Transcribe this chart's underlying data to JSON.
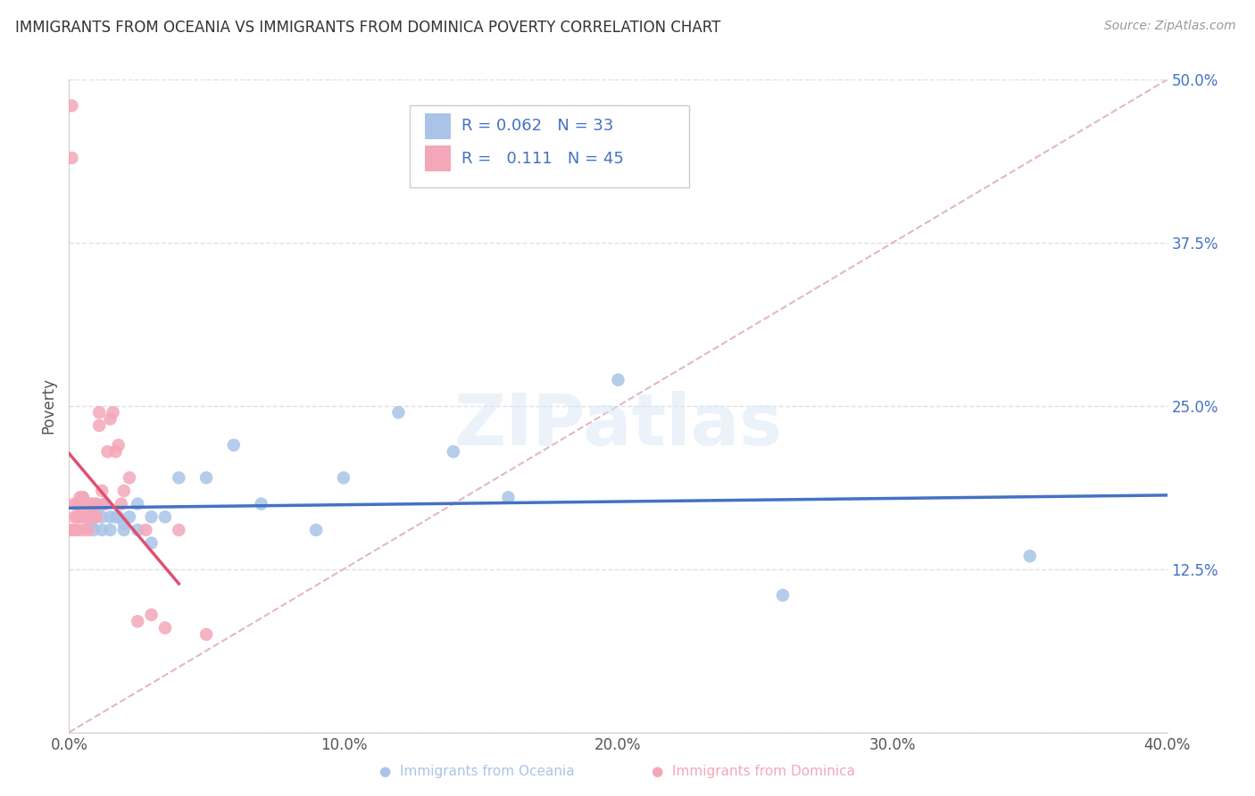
{
  "title": "IMMIGRANTS FROM OCEANIA VS IMMIGRANTS FROM DOMINICA POVERTY CORRELATION CHART",
  "source": "Source: ZipAtlas.com",
  "ylabel": "Poverty",
  "watermark": "ZIPatlas",
  "legend_r_oceania": "0.062",
  "legend_n_oceania": "33",
  "legend_r_dominica": "0.111",
  "legend_n_dominica": "45",
  "xlim": [
    0.0,
    0.4
  ],
  "ylim": [
    0.0,
    0.5
  ],
  "yticks": [
    0.0,
    0.125,
    0.25,
    0.375,
    0.5
  ],
  "xticks": [
    0.0,
    0.1,
    0.2,
    0.3,
    0.4
  ],
  "background_color": "#ffffff",
  "grid_color": "#e0e0e8",
  "title_color": "#333333",
  "oceania_color": "#aac4e8",
  "dominica_color": "#f4a7b9",
  "oceania_line_color": "#4472c4",
  "dominica_line_color": "#e05070",
  "ref_line_color": "#e0b8c8",
  "oceania_scatter_x": [
    0.003,
    0.005,
    0.007,
    0.008,
    0.009,
    0.01,
    0.012,
    0.012,
    0.013,
    0.015,
    0.015,
    0.017,
    0.018,
    0.02,
    0.02,
    0.022,
    0.025,
    0.025,
    0.03,
    0.03,
    0.035,
    0.04,
    0.05,
    0.06,
    0.07,
    0.09,
    0.1,
    0.12,
    0.14,
    0.16,
    0.2,
    0.26,
    0.35
  ],
  "oceania_scatter_y": [
    0.175,
    0.18,
    0.165,
    0.16,
    0.155,
    0.17,
    0.165,
    0.155,
    0.175,
    0.165,
    0.155,
    0.165,
    0.165,
    0.16,
    0.155,
    0.165,
    0.175,
    0.155,
    0.165,
    0.145,
    0.165,
    0.195,
    0.195,
    0.22,
    0.175,
    0.155,
    0.195,
    0.245,
    0.215,
    0.18,
    0.27,
    0.105,
    0.135
  ],
  "dominica_scatter_x": [
    0.0005,
    0.001,
    0.001,
    0.002,
    0.002,
    0.002,
    0.003,
    0.003,
    0.003,
    0.004,
    0.004,
    0.004,
    0.005,
    0.005,
    0.005,
    0.005,
    0.006,
    0.006,
    0.007,
    0.007,
    0.007,
    0.008,
    0.008,
    0.009,
    0.009,
    0.01,
    0.01,
    0.011,
    0.011,
    0.012,
    0.013,
    0.014,
    0.015,
    0.016,
    0.017,
    0.018,
    0.019,
    0.02,
    0.022,
    0.025,
    0.028,
    0.03,
    0.035,
    0.04,
    0.05
  ],
  "dominica_scatter_y": [
    0.155,
    0.48,
    0.44,
    0.175,
    0.165,
    0.155,
    0.175,
    0.165,
    0.155,
    0.18,
    0.175,
    0.165,
    0.18,
    0.175,
    0.165,
    0.155,
    0.175,
    0.165,
    0.175,
    0.165,
    0.155,
    0.175,
    0.165,
    0.175,
    0.165,
    0.175,
    0.165,
    0.245,
    0.235,
    0.185,
    0.175,
    0.215,
    0.24,
    0.245,
    0.215,
    0.22,
    0.175,
    0.185,
    0.195,
    0.085,
    0.155,
    0.09,
    0.08,
    0.155,
    0.075
  ]
}
